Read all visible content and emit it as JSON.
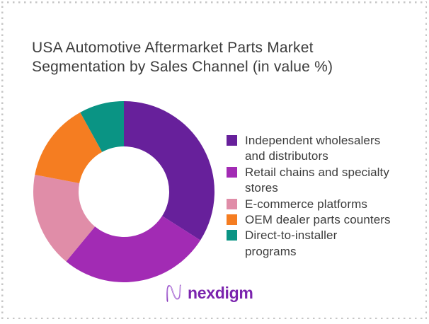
{
  "title_display": "USA Automotive Aftermarket Parts Market\nSegmentation by Sales Channel (in value %)",
  "chart_data": {
    "type": "pie",
    "subtype": "donut",
    "title": "USA Automotive Aftermarket Parts Market Segmentation by Sales Channel (in value %)",
    "categories": [
      "Independent wholesalers and distributors",
      "Retail chains and specialty stores",
      "E-commerce platforms",
      "OEM dealer parts counters",
      "Direct-to-installer programs"
    ],
    "values": [
      34,
      27,
      17,
      14,
      8
    ],
    "unit": "%",
    "colors": [
      "#67209b",
      "#a22bb4",
      "#e08da8",
      "#f57d21",
      "#0a9484"
    ],
    "inner_radius_ratio": 0.5,
    "start_angle_deg": 0,
    "direction": "clockwise",
    "legend_position": "right",
    "data_labels": false
  },
  "legend": {
    "items": [
      {
        "label": "Independent wholesalers\nand distributors"
      },
      {
        "label": "Retail chains and specialty\nstores"
      },
      {
        "label": "E-commerce platforms"
      },
      {
        "label": "OEM dealer parts counters"
      },
      {
        "label": "Direct-to-installer\nprograms"
      }
    ]
  },
  "logo": {
    "text": "nexdigm"
  },
  "frame": {
    "border_color": "#c6c6c6"
  }
}
